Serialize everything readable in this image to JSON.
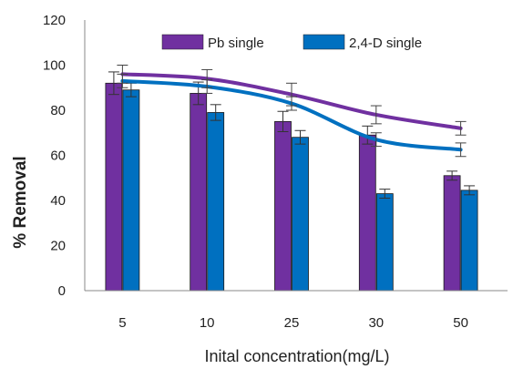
{
  "chart_data": {
    "type": "bar",
    "categories": [
      "5",
      "10",
      "25",
      "30",
      "50"
    ],
    "xlabel": "Inital concentration(mg/L)",
    "ylabel": "% Removal",
    "ylim": [
      0,
      120
    ],
    "yticks": [
      0,
      20,
      40,
      60,
      80,
      100,
      120
    ],
    "grid": false,
    "legend_position": "top",
    "series": [
      {
        "name": "Pb single",
        "color": "#7030a0",
        "values": [
          92,
          87.5,
          75,
          69,
          51
        ],
        "errors": [
          5,
          5,
          4.5,
          4,
          2
        ]
      },
      {
        "name": "2,4-D single",
        "color": "#0070c0",
        "values": [
          89,
          79,
          68,
          43,
          44.5
        ],
        "errors": [
          3,
          3.5,
          3,
          2,
          2
        ]
      }
    ],
    "trend_lines": [
      {
        "series": "Pb single",
        "color": "#7030a0",
        "values": [
          96,
          94,
          87,
          78,
          72
        ],
        "errors": [
          4,
          4,
          5,
          4,
          3
        ]
      },
      {
        "series": "2,4-D single",
        "color": "#0070c0",
        "values": [
          93,
          90.5,
          83,
          67,
          62.5
        ],
        "errors": [
          3,
          3,
          3,
          3,
          3
        ]
      }
    ]
  }
}
